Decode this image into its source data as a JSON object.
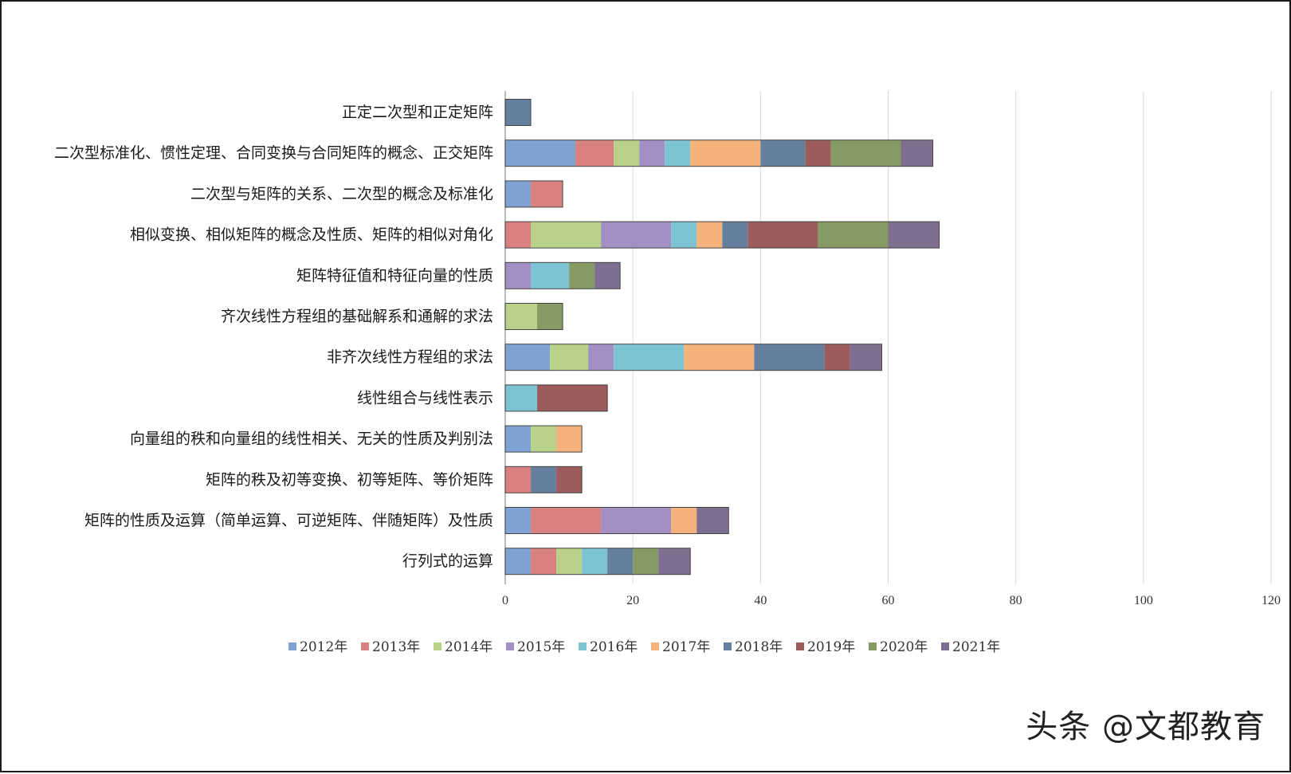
{
  "watermark": "头条 @文都教育",
  "colors": [
    "#7fa4d4",
    "#d98080",
    "#b9d28a",
    "#a48fc4",
    "#7ec3d4",
    "#f5b27a",
    "#65809e",
    "#9c5c5c",
    "#869a64",
    "#7e6e8f"
  ],
  "chart_data": {
    "type": "bar",
    "orientation": "horizontal",
    "stacked": true,
    "xlim": [
      0,
      120
    ],
    "x_ticks": [
      0,
      20,
      40,
      60,
      80,
      100,
      120
    ],
    "grid": true,
    "legend_position": "bottom",
    "categories": [
      "正定二次型和正定矩阵",
      "二次型标准化、惯性定理、合同变换与合同矩阵的概念、正交矩阵",
      "二次型与矩阵的关系、二次型的概念及标准化",
      "相似变换、相似矩阵的概念及性质、矩阵的相似对角化",
      "矩阵特征值和特征向量的性质",
      "齐次线性方程组的基础解系和通解的求法",
      "非齐次线性方程组的求法",
      "线性组合与线性表示",
      "向量组的秩和向量组的线性相关、无关的性质及判别法",
      "矩阵的秩及初等变换、初等矩阵、等价矩阵",
      "矩阵的性质及运算（简单运算、可逆矩阵、伴随矩阵）及性质",
      "行列式的运算"
    ],
    "series": [
      {
        "name": "2012年",
        "values": [
          0,
          11,
          4,
          0,
          0,
          0,
          7,
          0,
          4,
          0,
          4,
          4
        ]
      },
      {
        "name": "2013年",
        "values": [
          0,
          6,
          5,
          4,
          0,
          0,
          0,
          0,
          0,
          4,
          11,
          4
        ]
      },
      {
        "name": "2014年",
        "values": [
          0,
          4,
          0,
          11,
          0,
          5,
          6,
          0,
          4,
          0,
          0,
          4
        ]
      },
      {
        "name": "2015年",
        "values": [
          0,
          4,
          0,
          11,
          4,
          0,
          4,
          0,
          0,
          0,
          11,
          0
        ]
      },
      {
        "name": "2016年",
        "values": [
          0,
          4,
          0,
          4,
          6,
          0,
          11,
          5,
          0,
          0,
          0,
          4
        ]
      },
      {
        "name": "2017年",
        "values": [
          0,
          11,
          0,
          4,
          0,
          0,
          11,
          0,
          4,
          0,
          4,
          0
        ]
      },
      {
        "name": "2018年",
        "values": [
          4,
          7,
          0,
          4,
          0,
          0,
          11,
          0,
          0,
          4,
          0,
          4
        ]
      },
      {
        "name": "2019年",
        "values": [
          0,
          4,
          0,
          11,
          0,
          0,
          4,
          11,
          0,
          4,
          0,
          0
        ]
      },
      {
        "name": "2020年",
        "values": [
          0,
          11,
          0,
          11,
          4,
          4,
          0,
          0,
          0,
          0,
          0,
          4
        ]
      },
      {
        "name": "2021年",
        "values": [
          0,
          5,
          0,
          8,
          4,
          0,
          5,
          0,
          0,
          0,
          5,
          5
        ]
      }
    ]
  }
}
